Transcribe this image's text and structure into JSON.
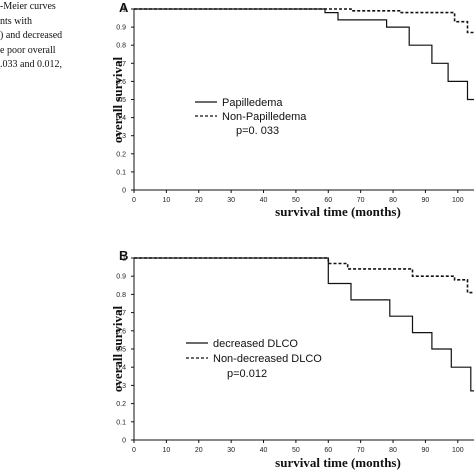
{
  "caption_lines": [
    "-Meier curves",
    "nts with",
    ") and decreased",
    "e poor overall",
    ".033 and 0.012,"
  ],
  "chart_data": [
    {
      "type": "line",
      "panel": "A",
      "xlabel": "survival time (months)",
      "ylabel": "overall survival",
      "xlim": [
        0,
        105
      ],
      "ylim": [
        0,
        1
      ],
      "xticks": [
        0,
        10,
        20,
        30,
        40,
        50,
        60,
        70,
        80,
        90,
        100
      ],
      "yticks": [
        0,
        0.1,
        0.2,
        0.3,
        0.4,
        0.5,
        0.6,
        0.7,
        0.8,
        0.9,
        1
      ],
      "ytick_labels": [
        "0",
        "0.1",
        "0.2",
        "0.3",
        "0.4",
        "0.5",
        "0.6",
        "0.7",
        "0.8",
        "0.9",
        "1"
      ],
      "grid": false,
      "legend_position": "center",
      "annotation": "p=0. 033",
      "series": [
        {
          "name": "Papilledema",
          "style": "solid",
          "x": [
            0,
            59,
            59,
            63,
            63,
            78,
            78,
            85,
            85,
            92,
            92,
            97,
            97,
            103,
            103,
            105
          ],
          "y": [
            1,
            1,
            0.98,
            0.98,
            0.94,
            0.94,
            0.9,
            0.9,
            0.8,
            0.8,
            0.7,
            0.7,
            0.6,
            0.6,
            0.5,
            0.5
          ]
        },
        {
          "name": "Non-Papilledema",
          "style": "dashed",
          "x": [
            0,
            67,
            67,
            82,
            82,
            99,
            99,
            103,
            103,
            105
          ],
          "y": [
            1,
            1,
            0.99,
            0.99,
            0.98,
            0.98,
            0.93,
            0.93,
            0.87,
            0.87
          ]
        }
      ]
    },
    {
      "type": "line",
      "panel": "B",
      "xlabel": "survival time (months)",
      "ylabel": "overall survival",
      "xlim": [
        0,
        105
      ],
      "ylim": [
        0,
        1
      ],
      "xticks": [
        0,
        10,
        20,
        30,
        40,
        50,
        60,
        70,
        80,
        90,
        100
      ],
      "yticks": [
        0,
        0.1,
        0.2,
        0.3,
        0.4,
        0.5,
        0.6,
        0.7,
        0.8,
        0.9,
        1
      ],
      "ytick_labels": [
        "0",
        "0.1",
        "0.2",
        "0.3",
        "0.4",
        "0.5",
        "0.6",
        "0.7",
        "0.8",
        "0.9",
        "1"
      ],
      "grid": false,
      "legend_position": "center-left",
      "annotation": "p=0.012",
      "series": [
        {
          "name": "decreased DLCO",
          "style": "solid",
          "x": [
            0,
            60,
            60,
            67,
            67,
            79,
            79,
            86,
            86,
            92,
            92,
            98,
            98,
            104,
            104,
            105
          ],
          "y": [
            1,
            1,
            0.86,
            0.86,
            0.77,
            0.77,
            0.68,
            0.68,
            0.59,
            0.59,
            0.5,
            0.5,
            0.4,
            0.4,
            0.27,
            0.27
          ]
        },
        {
          "name": "Non-decreased DLCO",
          "style": "dashed",
          "x": [
            0,
            60,
            60,
            66,
            66,
            86,
            86,
            99,
            99,
            103,
            103,
            105
          ],
          "y": [
            1,
            1,
            0.97,
            0.97,
            0.94,
            0.94,
            0.9,
            0.9,
            0.88,
            0.88,
            0.81,
            0.81
          ]
        }
      ]
    }
  ]
}
